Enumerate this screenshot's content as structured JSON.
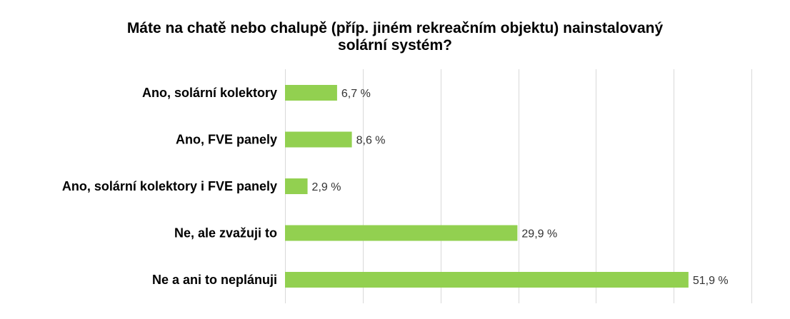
{
  "chart_data": {
    "type": "bar",
    "orientation": "horizontal",
    "title": "Máte na chatě nebo chalupě (příp. jiném rekreačním objektu) nainstalovaný solární systém?",
    "title_lines": [
      "Máte na chatě nebo chalupě (příp. jiném rekreačním objektu) nainstalovaný",
      "solární systém?"
    ],
    "categories": [
      "Ano, solární kolektory",
      "Ano, FVE panely",
      "Ano, solární kolektory i FVE panely",
      "Ne, ale zvažuji to",
      "Ne a ani to neplánuji"
    ],
    "values": [
      6.7,
      8.6,
      2.9,
      29.9,
      51.9
    ],
    "data_labels": [
      "6,7 %",
      "8,6 %",
      "2,9 %",
      "29,9 %",
      "51,9 %"
    ],
    "unit": "%",
    "xlim": [
      0,
      60
    ],
    "grid_step": 10,
    "grid": true,
    "legend": false,
    "bar_color": "#92d050",
    "grid_color": "#d9d9d9"
  }
}
